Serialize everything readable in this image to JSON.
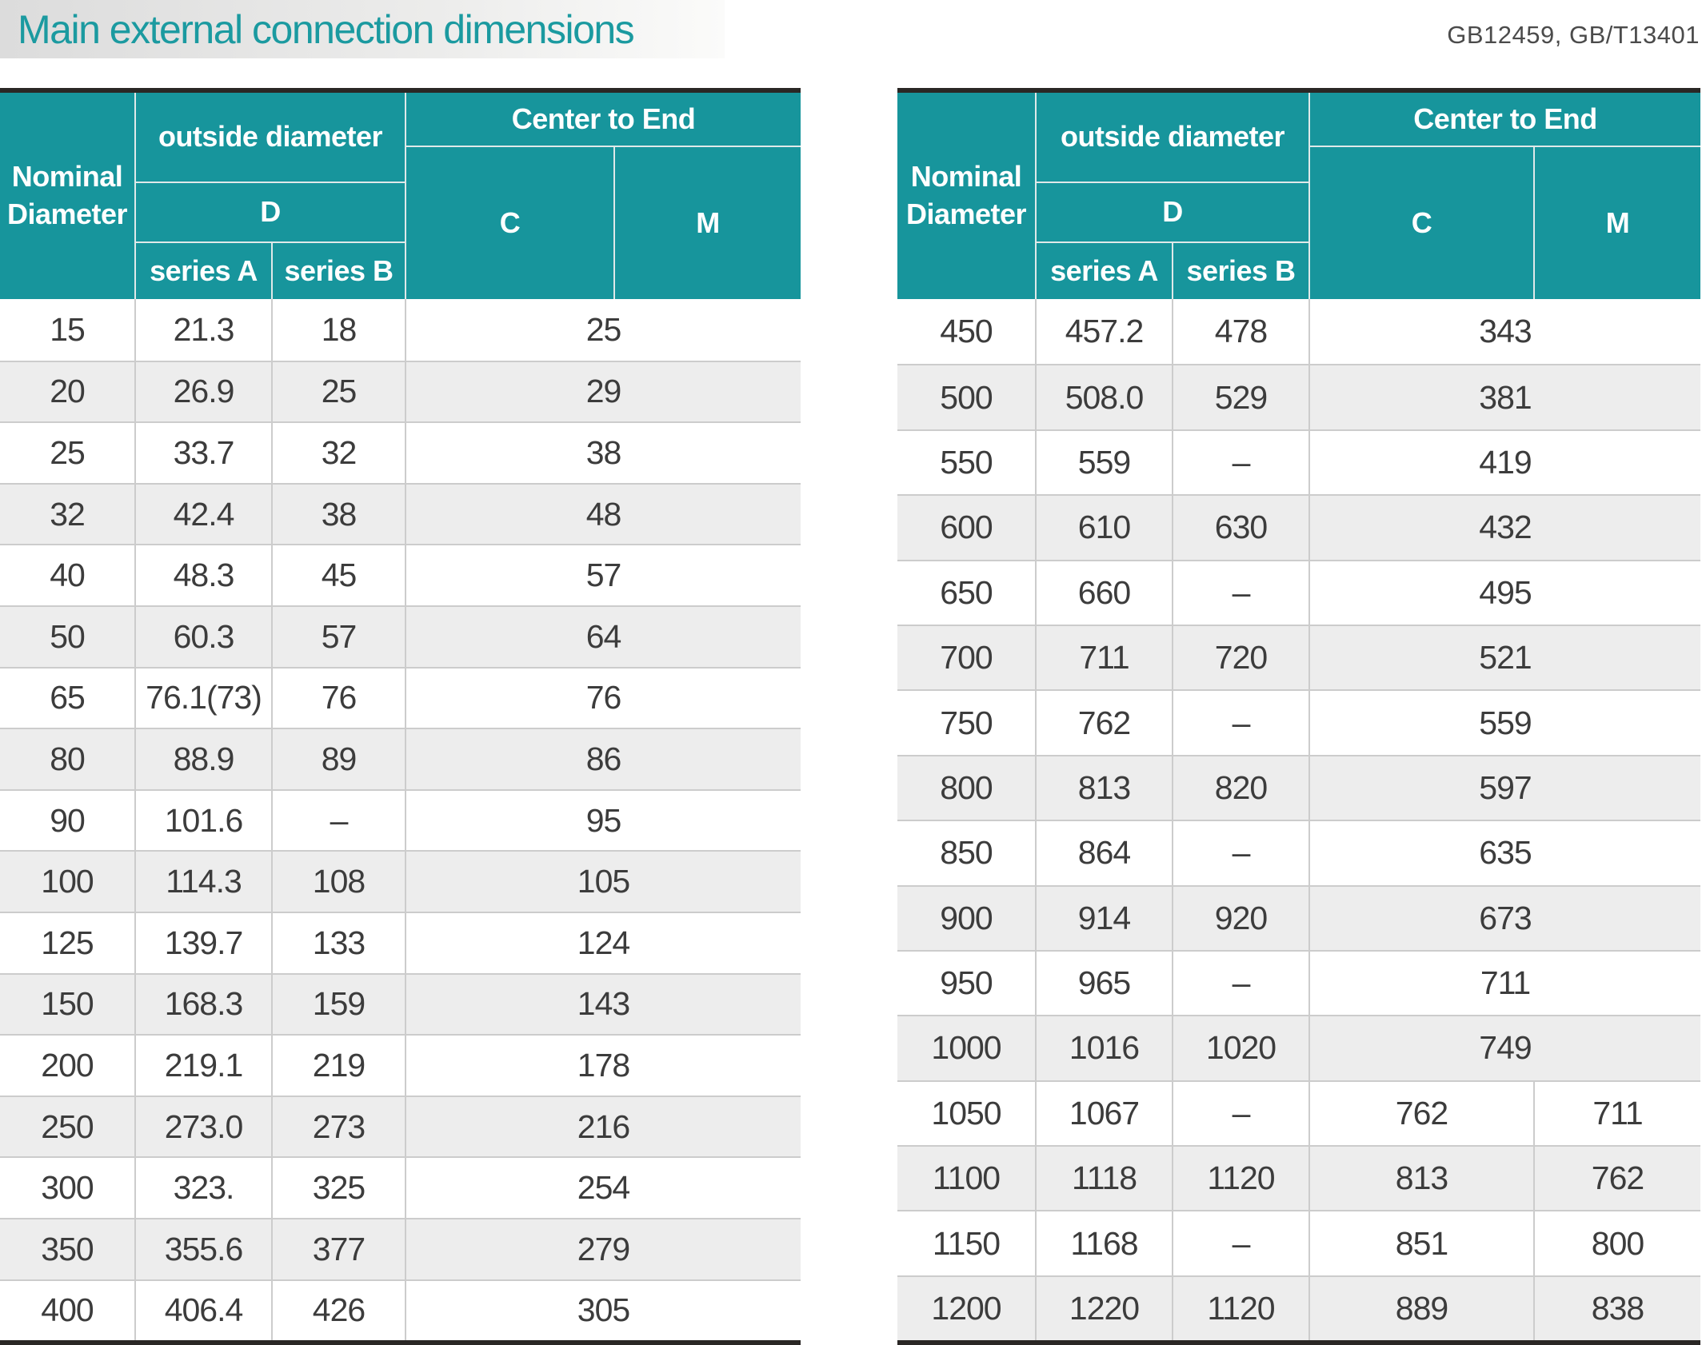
{
  "page": {
    "title": "Main external connection dimensions",
    "standards": "GB12459, GB/T13401"
  },
  "colors": {
    "teal_header": "#17959c",
    "teal_title": "#1b9aa0",
    "alt_row": "#ededed",
    "divider": "#cccccc",
    "header_divider": "#dfe9e9",
    "frame": "#2a2725",
    "text": "#3c3c3c",
    "standards_text": "#4b4b4b"
  },
  "header_labels": {
    "nominal": "Nominal Diameter",
    "outside_diameter": "outside diameter",
    "d": "D",
    "series_a": "series A",
    "series_b": "series B",
    "center_to_end": "Center to End",
    "c": "C",
    "m": "M"
  },
  "tables": [
    {
      "id": "left-table",
      "rows": [
        {
          "nominal": "15",
          "series_a": "21.3",
          "series_b": "18",
          "cm": "25"
        },
        {
          "nominal": "20",
          "series_a": "26.9",
          "series_b": "25",
          "cm": "29"
        },
        {
          "nominal": "25",
          "series_a": "33.7",
          "series_b": "32",
          "cm": "38"
        },
        {
          "nominal": "32",
          "series_a": "42.4",
          "series_b": "38",
          "cm": "48"
        },
        {
          "nominal": "40",
          "series_a": "48.3",
          "series_b": "45",
          "cm": "57"
        },
        {
          "nominal": "50",
          "series_a": "60.3",
          "series_b": "57",
          "cm": "64"
        },
        {
          "nominal": "65",
          "series_a": "76.1(73)",
          "series_b": "76",
          "cm": "76"
        },
        {
          "nominal": "80",
          "series_a": "88.9",
          "series_b": "89",
          "cm": "86"
        },
        {
          "nominal": "90",
          "series_a": "101.6",
          "series_b": "–",
          "cm": "95"
        },
        {
          "nominal": "100",
          "series_a": "114.3",
          "series_b": "108",
          "cm": "105"
        },
        {
          "nominal": "125",
          "series_a": "139.7",
          "series_b": "133",
          "cm": "124"
        },
        {
          "nominal": "150",
          "series_a": "168.3",
          "series_b": "159",
          "cm": "143"
        },
        {
          "nominal": "200",
          "series_a": "219.1",
          "series_b": "219",
          "cm": "178"
        },
        {
          "nominal": "250",
          "series_a": "273.0",
          "series_b": "273",
          "cm": "216"
        },
        {
          "nominal": "300",
          "series_a": "323.",
          "series_b": "325",
          "cm": "254"
        },
        {
          "nominal": "350",
          "series_a": "355.6",
          "series_b": "377",
          "cm": "279"
        },
        {
          "nominal": "400",
          "series_a": "406.4",
          "series_b": "426",
          "cm": "305"
        }
      ]
    },
    {
      "id": "right-table",
      "rows": [
        {
          "nominal": "450",
          "series_a": "457.2",
          "series_b": "478",
          "cm": "343"
        },
        {
          "nominal": "500",
          "series_a": "508.0",
          "series_b": "529",
          "cm": "381"
        },
        {
          "nominal": "550",
          "series_a": "559",
          "series_b": "–",
          "cm": "419"
        },
        {
          "nominal": "600",
          "series_a": "610",
          "series_b": "630",
          "cm": "432"
        },
        {
          "nominal": "650",
          "series_a": "660",
          "series_b": "–",
          "cm": "495"
        },
        {
          "nominal": "700",
          "series_a": "711",
          "series_b": "720",
          "cm": "521"
        },
        {
          "nominal": "750",
          "series_a": "762",
          "series_b": "–",
          "cm": "559"
        },
        {
          "nominal": "800",
          "series_a": "813",
          "series_b": "820",
          "cm": "597"
        },
        {
          "nominal": "850",
          "series_a": "864",
          "series_b": "–",
          "cm": "635"
        },
        {
          "nominal": "900",
          "series_a": "914",
          "series_b": "920",
          "cm": "673"
        },
        {
          "nominal": "950",
          "series_a": "965",
          "series_b": "–",
          "cm": "711"
        },
        {
          "nominal": "1000",
          "series_a": "1016",
          "series_b": "1020",
          "cm": "749"
        },
        {
          "nominal": "1050",
          "series_a": "1067",
          "series_b": "–",
          "c": "762",
          "m": "711"
        },
        {
          "nominal": "1100",
          "series_a": "1118",
          "series_b": "1120",
          "c": "813",
          "m": "762"
        },
        {
          "nominal": "1150",
          "series_a": "1168",
          "series_b": "–",
          "c": "851",
          "m": "800"
        },
        {
          "nominal": "1200",
          "series_a": "1220",
          "series_b": "1120",
          "c": "889",
          "m": "838"
        }
      ]
    }
  ]
}
